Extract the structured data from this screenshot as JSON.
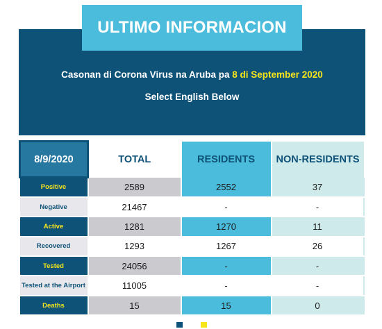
{
  "banner": {
    "title": "ULTIMO INFORMACION",
    "subtitle_prefix": "Casonan di Corona Virus na Aruba pa",
    "subtitle_date": "8 di September 2020",
    "english_note": "Select English Below"
  },
  "table": {
    "date": "8/9/2020",
    "headers": {
      "total": "TOTAL",
      "residents": "RESIDENTS",
      "non_residents": "NON-RESIDENTS"
    },
    "rows": [
      {
        "label": "Positive",
        "total": "2589",
        "residents": "2552",
        "non_residents": "37"
      },
      {
        "label": "Negative",
        "total": "21467",
        "residents": "-",
        "non_residents": "-"
      },
      {
        "label": "Active",
        "total": "1281",
        "residents": "1270",
        "non_residents": "11"
      },
      {
        "label": "Recovered",
        "total": "1293",
        "residents": "1267",
        "non_residents": "26"
      },
      {
        "label": "Tested",
        "total": "24056",
        "residents": "-",
        "non_residents": "-"
      },
      {
        "label": "Tested at the Airport",
        "total": "11005",
        "residents": "-",
        "non_residents": "-"
      },
      {
        "label": "Deaths",
        "total": "15",
        "residents": "15",
        "non_residents": "0"
      }
    ]
  },
  "colors": {
    "navy": "#0f5278",
    "cyan": "#4bbcdb",
    "yellow": "#f5e51a",
    "pale_teal": "#cfeaea",
    "gray": "#cbcacf"
  },
  "pagination": {
    "dots": 2,
    "active": 1
  }
}
